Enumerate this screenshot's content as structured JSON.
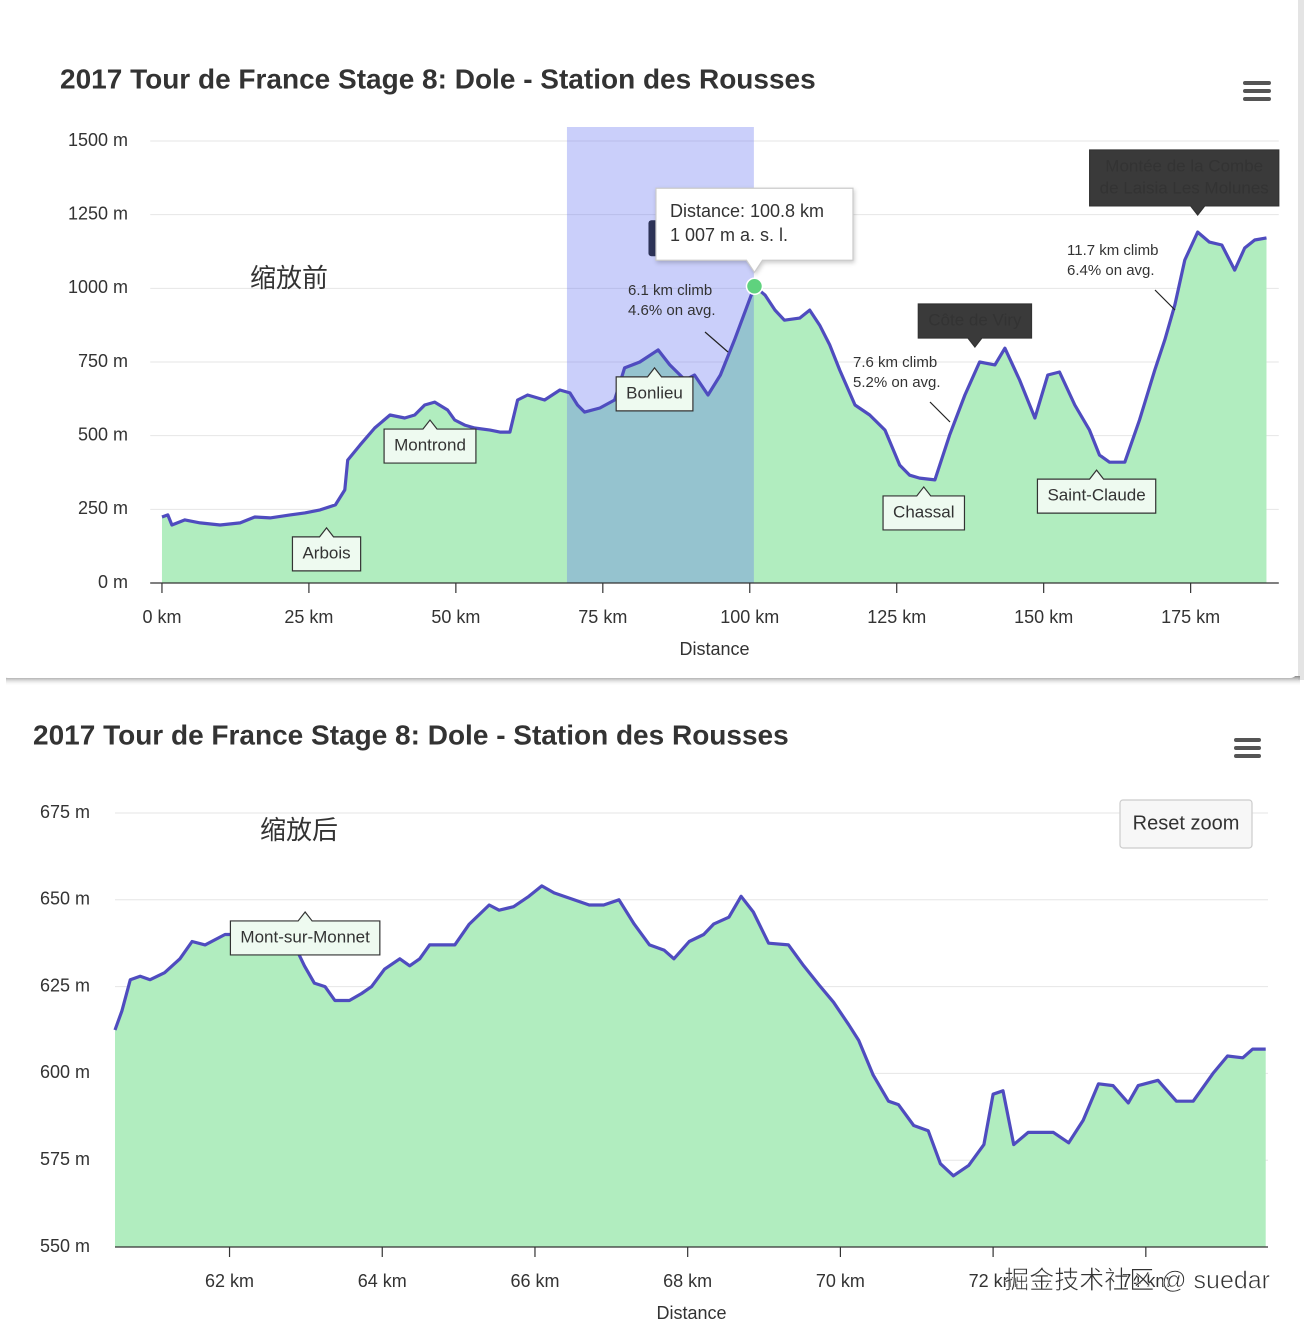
{
  "chart_data": [
    {
      "type": "area",
      "title": "2017 Tour de France Stage 8: Dole - Station des Rousses",
      "xlabel": "Distance",
      "note": "缩放前",
      "color": "#4f4cbf",
      "fill_color": "#b1edbf",
      "xlim": [
        -2,
        190
      ],
      "xticks": [
        {
          "value": 0,
          "label": "0 km"
        },
        {
          "value": 25,
          "label": "25 km"
        },
        {
          "value": 50,
          "label": "50 km"
        },
        {
          "value": 75,
          "label": "75 km"
        },
        {
          "value": 100,
          "label": "100 km"
        },
        {
          "value": 125,
          "label": "125 km"
        },
        {
          "value": 150,
          "label": "150 km"
        },
        {
          "value": 175,
          "label": "175 km"
        }
      ],
      "ylim": [
        0,
        1500
      ],
      "yticks": [
        {
          "value": 0,
          "label": "0 m"
        },
        {
          "value": 250,
          "label": "250 m"
        },
        {
          "value": 500,
          "label": "500 m"
        },
        {
          "value": 750,
          "label": "750 m"
        },
        {
          "value": 1000,
          "label": "1000 m"
        },
        {
          "value": 1250,
          "label": "1250 m"
        },
        {
          "value": 1500,
          "label": "1500 m"
        }
      ],
      "grid": true,
      "x": [
        0,
        1,
        1.7,
        3.9,
        6.5,
        9.9,
        13.3,
        15.8,
        18.4,
        21.8,
        24.3,
        26.9,
        29.5,
        31.1,
        31.6,
        33.7,
        36.2,
        38.8,
        41.3,
        43,
        44.7,
        46.4,
        48.6,
        49.8,
        51.5,
        53.2,
        55.8,
        57.5,
        59.2,
        60.5,
        62.2,
        65.1,
        67.7,
        69.4,
        70.7,
        71.9,
        74.5,
        77,
        78.7,
        81.3,
        84.4,
        86.4,
        89,
        90.6,
        92.9,
        95,
        97.4,
        100.8,
        102.6,
        104.3,
        105.9,
        108.5,
        110.2,
        111.9,
        113.6,
        115.3,
        117.9,
        120.4,
        123,
        125.5,
        127.2,
        128.9,
        131.5,
        134,
        136.6,
        139.1,
        141.7,
        143.4,
        145.9,
        148.5,
        150.7,
        152.7,
        155.3,
        157.8,
        159.5,
        161.2,
        163.8,
        166.3,
        168.9,
        170.6,
        172.3,
        174,
        176.2,
        178.2,
        180.3,
        182.5,
        184.2,
        185.9,
        187.9
      ],
      "values": [
        224,
        231,
        197,
        214,
        204,
        197,
        204,
        224,
        221,
        231,
        238,
        248,
        265,
        316,
        417,
        468,
        526,
        570,
        560,
        570,
        604,
        614,
        587,
        553,
        536,
        526,
        519,
        512,
        512,
        621,
        638,
        621,
        655,
        645,
        604,
        580,
        594,
        621,
        730,
        750,
        791,
        740,
        689,
        706,
        638,
        706,
        825,
        1007,
        977,
        926,
        892,
        899,
        926,
        875,
        808,
        723,
        604,
        570,
        519,
        400,
        366,
        356,
        350,
        502,
        638,
        750,
        740,
        797,
        689,
        560,
        706,
        716,
        604,
        519,
        434,
        410,
        410,
        553,
        723,
        825,
        943,
        1096,
        1191,
        1157,
        1147,
        1062,
        1137,
        1164,
        1171
      ],
      "selection": [
        68.9,
        100.7
      ],
      "tooltip": {
        "x": 100.8,
        "y": 1007,
        "lines": [
          "Distance: 100.8 km",
          "1 007 m a. s. l."
        ]
      },
      "annotations": [
        {
          "fill": "#eefaf0",
          "text_color": "#111",
          "labels": [
            {
              "x": 28,
              "y": 187,
              "lines": [
                "Arbois"
              ]
            },
            {
              "x": 45.6,
              "y": 553,
              "lines": [
                "Montrond"
              ]
            },
            {
              "x": 83.8,
              "y": 730,
              "lines": [
                "Bonlieu"
              ]
            },
            {
              "x": 129.6,
              "y": 326,
              "lines": [
                "Chassal"
              ]
            },
            {
              "x": 159,
              "y": 383,
              "lines": [
                "Saint-Claude"
              ]
            }
          ]
        },
        {
          "fill": "#3a3a3a",
          "text_color": "#fff",
          "labels": [
            {
              "x": 138.3,
              "y": 801,
              "lines": [
                "Côte de Viry"
              ]
            },
            {
              "x": 176.2,
              "y": 1249,
              "lines": [
                "Montée de la Combe",
                "de Laisia Les Molunes"
              ]
            }
          ]
        }
      ],
      "climbs": [
        {
          "lines": [
            "6.1 km climb",
            "4.6% on avg."
          ]
        },
        {
          "lines": [
            "7.6 km climb",
            "5.2% on avg."
          ]
        },
        {
          "lines": [
            "11.7 km climb",
            "6.4% on avg."
          ]
        }
      ]
    },
    {
      "type": "area",
      "title": "2017 Tour de France Stage 8: Dole - Station des Rousses",
      "xlabel": "Distance",
      "note": "缩放后",
      "button": "Reset zoom",
      "color": "#4f4cbf",
      "fill_color": "#b1edbf",
      "xlim": [
        60.5,
        75.6
      ],
      "xticks": [
        {
          "value": 62,
          "label": "62 km"
        },
        {
          "value": 64,
          "label": "64 km"
        },
        {
          "value": 66,
          "label": "66 km"
        },
        {
          "value": 68,
          "label": "68 km"
        },
        {
          "value": 70,
          "label": "70 km"
        },
        {
          "value": 72,
          "label": "72 km"
        },
        {
          "value": 74,
          "label": "74 km"
        }
      ],
      "ylim": [
        550,
        675
      ],
      "yticks": [
        {
          "value": 550,
          "label": "550 m"
        },
        {
          "value": 575,
          "label": "575 m"
        },
        {
          "value": 600,
          "label": "600 m"
        },
        {
          "value": 625,
          "label": "625 m"
        },
        {
          "value": 650,
          "label": "650 m"
        },
        {
          "value": 675,
          "label": "675 m"
        }
      ],
      "grid": true,
      "x": [
        60.5,
        60.59,
        60.7,
        60.83,
        60.96,
        61.15,
        61.35,
        61.51,
        61.68,
        61.94,
        62.26,
        62.53,
        62.85,
        62.98,
        63.11,
        63.25,
        63.38,
        63.57,
        63.73,
        63.86,
        64.03,
        64.23,
        64.36,
        64.49,
        64.62,
        64.95,
        65.14,
        65.4,
        65.53,
        65.72,
        65.92,
        66.09,
        66.25,
        66.45,
        66.71,
        66.9,
        67.1,
        67.3,
        67.5,
        67.69,
        67.82,
        68.02,
        68.21,
        68.34,
        68.54,
        68.7,
        68.86,
        69.06,
        69.32,
        69.52,
        69.72,
        69.91,
        70.11,
        70.24,
        70.43,
        70.63,
        70.76,
        70.96,
        71.15,
        71.31,
        71.48,
        71.68,
        71.88,
        72.0,
        72.13,
        72.27,
        72.46,
        72.79,
        72.99,
        73.18,
        73.38,
        73.57,
        73.77,
        73.9,
        74.16,
        74.4,
        74.62,
        74.88,
        75.07,
        75.27,
        75.4,
        75.57
      ],
      "values": [
        612.5,
        618,
        627,
        628,
        627,
        629,
        633,
        638,
        637,
        640,
        640,
        638,
        637,
        631,
        626,
        625,
        621,
        621,
        623,
        625,
        630,
        633,
        631,
        633,
        637,
        637,
        643,
        648.5,
        647,
        648,
        651,
        654,
        652,
        650.5,
        648.5,
        648.5,
        650,
        643,
        637,
        635.5,
        633,
        638,
        640,
        643,
        645,
        651,
        646.5,
        637.5,
        637,
        631,
        625.5,
        620.5,
        614,
        609.5,
        599.5,
        592,
        591,
        585,
        583.5,
        574,
        570.5,
        573.5,
        579.5,
        594,
        595,
        579.5,
        583,
        583,
        580,
        586.5,
        597,
        596.5,
        591.5,
        596.5,
        598,
        592,
        592,
        600,
        605,
        604.5,
        607,
        607
      ],
      "annotations": [
        {
          "fill": "#eefaf0",
          "text_color": "#111",
          "labels": [
            {
              "x": 62.99,
              "y": 646.5,
              "lines": [
                "Mont-sur-Monnet"
              ]
            }
          ]
        }
      ]
    }
  ],
  "watermark": "掘金技术社区 @ suedar"
}
